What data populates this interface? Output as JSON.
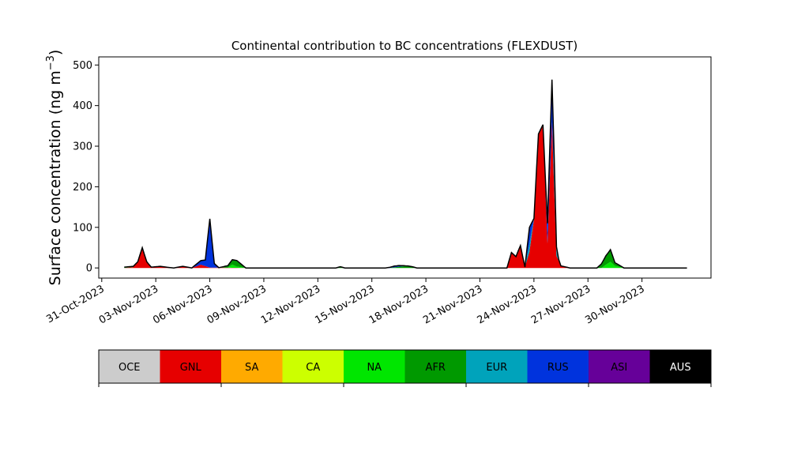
{
  "chart_data": {
    "type": "area",
    "title": "Continental contribution to BC concentrations (FLEXDUST)",
    "ylabel": "Surface concentration (ng m",
    "ylabel_sup": "−3",
    "ylabel_close": ")",
    "xlabel": "",
    "ylim": [
      -25,
      520
    ],
    "yticks": [
      0,
      100,
      200,
      300,
      400,
      500
    ],
    "xlim": [
      "2023-10-30T20:00",
      "2023-12-03T20:00"
    ],
    "xticks": [
      {
        "date": "2023-10-31",
        "label": "31-Oct-2023"
      },
      {
        "date": "2023-11-03",
        "label": "03-Nov-2023"
      },
      {
        "date": "2023-11-06",
        "label": "06-Nov-2023"
      },
      {
        "date": "2023-11-09",
        "label": "09-Nov-2023"
      },
      {
        "date": "2023-11-12",
        "label": "12-Nov-2023"
      },
      {
        "date": "2023-11-15",
        "label": "15-Nov-2023"
      },
      {
        "date": "2023-11-18",
        "label": "18-Nov-2023"
      },
      {
        "date": "2023-11-21",
        "label": "21-Nov-2023"
      },
      {
        "date": "2023-11-24",
        "label": "24-Nov-2023"
      },
      {
        "date": "2023-11-27",
        "label": "27-Nov-2023"
      },
      {
        "date": "2023-11-30",
        "label": "30-Nov-2023"
      }
    ],
    "grid": false,
    "stacking": "stacked",
    "legend_placement": "below",
    "legend": [
      {
        "label": "OCE",
        "color": "#cccccc",
        "text_color": "#000000"
      },
      {
        "label": "GNL",
        "color": "#e60000",
        "text_color": "#000000"
      },
      {
        "label": "SA",
        "color": "#ffaa00",
        "text_color": "#000000"
      },
      {
        "label": "CA",
        "color": "#ccff00",
        "text_color": "#000000"
      },
      {
        "label": "NA",
        "color": "#00e600",
        "text_color": "#000000"
      },
      {
        "label": "AFR",
        "color": "#009900",
        "text_color": "#000000"
      },
      {
        "label": "EUR",
        "color": "#00a3bb",
        "text_color": "#000000"
      },
      {
        "label": "RUS",
        "color": "#0033dd",
        "text_color": "#000000"
      },
      {
        "label": "ASI",
        "color": "#660099",
        "text_color": "#000000"
      },
      {
        "label": "AUS",
        "color": "#000000",
        "text_color": "#ffffff"
      }
    ],
    "series": [
      {
        "name": "GNL",
        "color": "#e60000",
        "points": [
          [
            "2023-11-01T06:00",
            0
          ],
          [
            "2023-11-01T18:00",
            2
          ],
          [
            "2023-11-02T00:00",
            15
          ],
          [
            "2023-11-02T06:00",
            50
          ],
          [
            "2023-11-02T12:00",
            15
          ],
          [
            "2023-11-02T18:00",
            2
          ],
          [
            "2023-11-03T06:00",
            4
          ],
          [
            "2023-11-03T18:00",
            1
          ],
          [
            "2023-11-04T00:00",
            0
          ],
          [
            "2023-11-04T12:00",
            4
          ],
          [
            "2023-11-05T00:00",
            0
          ],
          [
            "2023-11-05T12:00",
            8
          ],
          [
            "2023-11-06T00:00",
            1
          ],
          [
            "2023-11-08T00:00",
            0
          ],
          [
            "2023-11-22T00:00",
            0
          ],
          [
            "2023-11-22T12:00",
            0
          ],
          [
            "2023-11-22T18:00",
            38
          ],
          [
            "2023-11-23T00:00",
            28
          ],
          [
            "2023-11-23T06:00",
            55
          ],
          [
            "2023-11-23T12:00",
            2
          ],
          [
            "2023-11-23T18:00",
            40
          ],
          [
            "2023-11-24T00:00",
            120
          ],
          [
            "2023-11-24T06:00",
            330
          ],
          [
            "2023-11-24T12:00",
            353
          ],
          [
            "2023-11-24T18:00",
            60
          ],
          [
            "2023-11-25T00:00",
            360
          ],
          [
            "2023-11-25T06:00",
            30
          ],
          [
            "2023-11-25T12:00",
            5
          ],
          [
            "2023-11-26T00:00",
            0
          ]
        ]
      },
      {
        "name": "NA",
        "color": "#00e600",
        "points": [
          [
            "2023-11-06T06:00",
            0
          ],
          [
            "2023-11-07T00:00",
            0
          ],
          [
            "2023-11-07T06:00",
            8
          ],
          [
            "2023-11-07T12:00",
            3
          ],
          [
            "2023-11-08T00:00",
            0
          ],
          [
            "2023-11-27T18:00",
            0
          ],
          [
            "2023-11-28T00:00",
            8
          ],
          [
            "2023-11-28T06:00",
            15
          ],
          [
            "2023-11-28T12:00",
            5
          ],
          [
            "2023-11-29T00:00",
            0
          ]
        ]
      },
      {
        "name": "AFR",
        "color": "#009900",
        "points": [
          [
            "2023-11-01T00:00",
            0
          ],
          [
            "2023-11-01T06:00",
            2
          ],
          [
            "2023-11-01T18:00",
            2
          ],
          [
            "2023-11-02T00:00",
            0
          ],
          [
            "2023-11-06T12:00",
            0
          ],
          [
            "2023-11-07T00:00",
            5
          ],
          [
            "2023-11-07T06:00",
            12
          ],
          [
            "2023-11-07T12:00",
            15
          ],
          [
            "2023-11-08T00:00",
            0
          ],
          [
            "2023-11-13T00:00",
            0
          ],
          [
            "2023-11-13T06:00",
            3
          ],
          [
            "2023-11-13T12:00",
            0
          ],
          [
            "2023-11-16T00:00",
            0
          ],
          [
            "2023-11-16T12:00",
            3
          ],
          [
            "2023-11-17T00:00",
            5
          ],
          [
            "2023-11-17T06:00",
            3
          ],
          [
            "2023-11-17T12:00",
            0
          ],
          [
            "2023-11-27T12:00",
            0
          ],
          [
            "2023-11-27T18:00",
            10
          ],
          [
            "2023-11-28T00:00",
            22
          ],
          [
            "2023-11-28T06:00",
            30
          ],
          [
            "2023-11-28T12:00",
            8
          ],
          [
            "2023-11-29T00:00",
            0
          ]
        ]
      },
      {
        "name": "EUR",
        "color": "#00a3bb",
        "points": [
          [
            "2023-11-23T12:00",
            0
          ],
          [
            "2023-11-23T18:00",
            20
          ],
          [
            "2023-11-24T00:00",
            2
          ],
          [
            "2023-11-24T06:00",
            0
          ],
          [
            "2023-11-25T00:00",
            0
          ],
          [
            "2023-11-25T04:00",
            40
          ],
          [
            "2023-11-25T08:00",
            5
          ],
          [
            "2023-11-25T12:00",
            0
          ]
        ]
      },
      {
        "name": "RUS",
        "color": "#0033dd",
        "points": [
          [
            "2023-11-05T00:00",
            0
          ],
          [
            "2023-11-05T18:00",
            15
          ],
          [
            "2023-11-06T00:00",
            120
          ],
          [
            "2023-11-06T06:00",
            10
          ],
          [
            "2023-11-06T12:00",
            0
          ],
          [
            "2023-11-15T18:00",
            0
          ],
          [
            "2023-11-16T06:00",
            3
          ],
          [
            "2023-11-16T12:00",
            3
          ],
          [
            "2023-11-17T00:00",
            0
          ],
          [
            "2023-11-23T12:00",
            0
          ],
          [
            "2023-11-23T18:00",
            40
          ],
          [
            "2023-11-24T00:00",
            0
          ],
          [
            "2023-11-24T12:00",
            0
          ],
          [
            "2023-11-25T00:00",
            100
          ],
          [
            "2023-11-25T06:00",
            0
          ]
        ]
      },
      {
        "name": "AUS",
        "color": "#000000",
        "points": [
          [
            "2023-11-06T00:00",
            0
          ],
          [
            "2023-11-06T00:01",
            4
          ],
          [
            "2023-11-06T03:00",
            0
          ],
          [
            "2023-11-24T18:00",
            0
          ],
          [
            "2023-11-25T00:00",
            4
          ],
          [
            "2023-11-25T04:00",
            0
          ]
        ]
      }
    ]
  }
}
